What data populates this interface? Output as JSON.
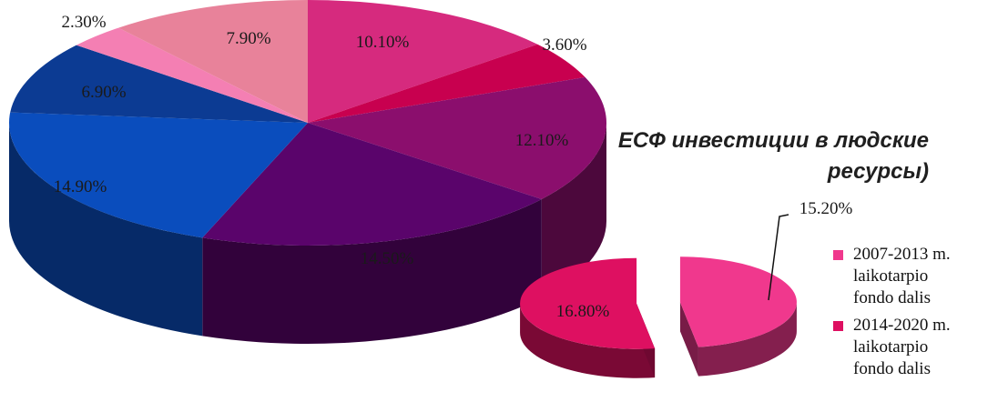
{
  "chart_data": [
    {
      "type": "pie",
      "slices": [
        {
          "label": "10.10%",
          "value": 10.1,
          "color": "#d62a7e"
        },
        {
          "label": "3.60%",
          "value": 3.6,
          "color": "#c8004f"
        },
        {
          "label": "12.10%",
          "value": 12.1,
          "color": "#8b0e6d"
        },
        {
          "label": "14.50%",
          "value": 14.5,
          "color": "#5a046b"
        },
        {
          "label": "14.90%",
          "value": 14.9,
          "color": "#0a4dbd"
        },
        {
          "label": "6.90%",
          "value": 6.9,
          "color": "#0c3b93"
        },
        {
          "label": "2.30%",
          "value": 2.3,
          "color": "#f47fb3"
        },
        {
          "label": "7.90%",
          "value": 7.9,
          "color": "#e8829a"
        }
      ]
    },
    {
      "type": "pie",
      "title": "ЕСФ инвестиции в людские ресурсы)",
      "slices": [
        {
          "label": "15.20%",
          "value": 15.2,
          "color": "#f0388d"
        },
        {
          "label": "16.80%",
          "value": 16.8,
          "color": "#de1061"
        }
      ],
      "legend": [
        {
          "label": "2007-2013 m.\nlaikotarpio\nfondo dalis",
          "color": "#f0388d"
        },
        {
          "label": "2014-2020 m.\nlaikotarpio\nfondo dalis",
          "color": "#de1061"
        }
      ],
      "legend_position": "right"
    }
  ]
}
